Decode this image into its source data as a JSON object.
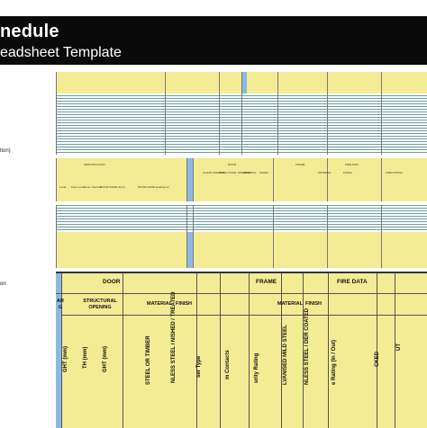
{
  "header": {
    "title": "nedule",
    "subtitle": "eadsheet Template"
  },
  "side_labels": {
    "upper": "tion)",
    "lower": "on"
  },
  "mini_sheets": {
    "row1_tags": [
      "IDENTIFICATION",
      "DOOR",
      "FRAME",
      "FIRE DATA"
    ],
    "row1_sub": [
      "Level",
      "Floor Level",
      "Room Number",
      "ROOM NAME (from)",
      "ROOM NAME (leading to)",
      "CLEAR OPENING",
      "STRUCTURAL OPENING",
      "MATERIAL",
      "FINISH",
      "MATERIAL",
      "FINISH",
      "FIRE RATING"
    ]
  },
  "big_sheet": {
    "groups": {
      "door": "DOOR",
      "frame": "FRAME",
      "fire_data": "FIRE DATA"
    },
    "sub": {
      "clear": "AR\nG",
      "structural_opening": "STRUCTURAL\nOPENING",
      "material_door": "MATERIAL",
      "finish_door": "FINISH",
      "material_frame": "MATERIAL",
      "finish_frame": "FINISH"
    },
    "rotated": {
      "height_mm": "GHT (mm)",
      "width_mm": "TH (mm)",
      "height2_mm": "GHT (mm)",
      "steel_timber": "STEEL OR TIMBER",
      "stainless": "NLESS STEEL / NISHED / TREATED",
      "frame_type": "ser Type",
      "contacts": "m Contacts",
      "security": "urity Rating",
      "galvanised": "LVANISED MILD STEEL",
      "powder": "NLESS STEEL / DER COATED",
      "fire_rating": "e Rating (In / Out)",
      "locked": "CKED",
      "last": "UT"
    }
  },
  "colors": {
    "banner": "#0a0a0a",
    "sheet_yellow": "#f4ec94",
    "sheet_blue": "#8db9e0",
    "grid_teal": "#6d9b9b"
  }
}
